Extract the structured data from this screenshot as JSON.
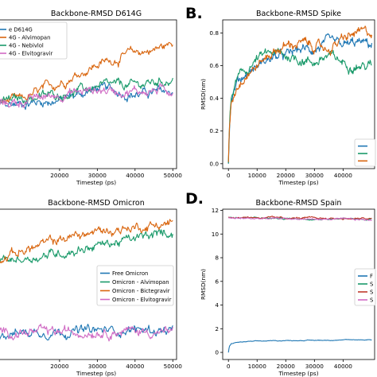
{
  "panel_labels": [
    "B.",
    "D."
  ],
  "colors": {
    "blue": "#1f77b4",
    "orange": "#d9660f",
    "green": "#1a9a6a",
    "pink": "#d06bc4",
    "red": "#c0392b"
  },
  "chart_data": [
    {
      "type": "line",
      "title": "Backbone-RMSD D614G",
      "xlabel": "Timestep (ps)",
      "ylabel": "",
      "xlim": [
        0,
        51000
      ],
      "xticks": [
        20000,
        30000,
        40000,
        50000
      ],
      "ylim": [
        0,
        1
      ],
      "legend_position": "upper-left",
      "series": [
        {
          "name": "e D614G",
          "color": "#1f77b4",
          "x": [
            0,
            10000,
            20000,
            30000,
            40000,
            50000
          ],
          "y": [
            0.41,
            0.44,
            0.46,
            0.54,
            0.5,
            0.52
          ]
        },
        {
          "name": "4G - Alvimopan",
          "color": "#d9660f",
          "x": [
            0,
            10000,
            20000,
            30000,
            40000,
            45000,
            50000
          ],
          "y": [
            0.44,
            0.46,
            0.58,
            0.7,
            0.78,
            0.8,
            0.84
          ]
        },
        {
          "name": "4G - Nebivlol",
          "color": "#1a9a6a",
          "x": [
            0,
            10000,
            20000,
            30000,
            40000,
            50000
          ],
          "y": [
            0.43,
            0.47,
            0.5,
            0.55,
            0.56,
            0.6
          ]
        },
        {
          "name": "4G - Elvitogravir",
          "color": "#d06bc4",
          "x": [
            0,
            10000,
            20000,
            30000,
            40000,
            50000
          ],
          "y": [
            0.42,
            0.45,
            0.5,
            0.53,
            0.52,
            0.53
          ]
        }
      ]
    },
    {
      "type": "line",
      "title": "Backbone-RMSD Spike",
      "xlabel": "Timestep (ps)",
      "ylabel": "RMSD(nm)",
      "xlim": [
        -2000,
        51000
      ],
      "xticks": [
        0,
        10000,
        20000,
        30000,
        40000
      ],
      "ylim": [
        -0.03,
        0.88
      ],
      "yticks": [
        0.0,
        0.2,
        0.4,
        0.6,
        0.8
      ],
      "legend_position": "lower-right",
      "series": [
        {
          "name": "",
          "color": "#1f77b4",
          "x": [
            0,
            300,
            1000,
            3000,
            6000,
            10000,
            15000,
            20000,
            25000,
            30000,
            35000,
            40000,
            45000,
            50000
          ],
          "y": [
            0.0,
            0.2,
            0.4,
            0.5,
            0.55,
            0.6,
            0.65,
            0.66,
            0.7,
            0.7,
            0.74,
            0.72,
            0.74,
            0.73
          ]
        },
        {
          "name": "",
          "color": "#1a9a6a",
          "x": [
            0,
            300,
            1000,
            3000,
            6000,
            10000,
            15000,
            20000,
            25000,
            30000,
            35000,
            40000,
            45000,
            50000
          ],
          "y": [
            0.0,
            0.22,
            0.4,
            0.52,
            0.56,
            0.64,
            0.68,
            0.66,
            0.64,
            0.62,
            0.66,
            0.62,
            0.6,
            0.6
          ]
        },
        {
          "name": "",
          "color": "#d9660f",
          "x": [
            0,
            300,
            1000,
            3000,
            6000,
            10000,
            15000,
            20000,
            25000,
            30000,
            35000,
            40000,
            45000,
            50000
          ],
          "y": [
            0.0,
            0.2,
            0.38,
            0.48,
            0.55,
            0.6,
            0.68,
            0.72,
            0.74,
            0.72,
            0.7,
            0.76,
            0.8,
            0.8
          ]
        }
      ]
    },
    {
      "type": "line",
      "title": "Backbone-RMSD Omicron",
      "xlabel": "Timestep (ps)",
      "ylabel": "",
      "xlim": [
        0,
        51000
      ],
      "xticks": [
        20000,
        30000,
        40000,
        50000
      ],
      "ylim": [
        0,
        1
      ],
      "legend_position": "right",
      "series": [
        {
          "name": "Free Omicron",
          "color": "#1f77b4",
          "x": [
            0,
            10000,
            20000,
            30000,
            40000,
            50000
          ],
          "y": [
            0.18,
            0.18,
            0.19,
            0.19,
            0.2,
            0.19
          ]
        },
        {
          "name": "Omicron - Alvimopan",
          "color": "#1a9a6a",
          "x": [
            0,
            10000,
            20000,
            30000,
            40000,
            50000
          ],
          "y": [
            0.64,
            0.67,
            0.71,
            0.76,
            0.8,
            0.85
          ]
        },
        {
          "name": "Omicron - Bictegravir",
          "color": "#d9660f",
          "x": [
            0,
            10000,
            20000,
            30000,
            40000,
            50000
          ],
          "y": [
            0.66,
            0.72,
            0.8,
            0.85,
            0.88,
            0.91
          ]
        },
        {
          "name": "Omicron - Elvitogravir",
          "color": "#d06bc4",
          "x": [
            0,
            10000,
            20000,
            30000,
            40000,
            50000
          ],
          "y": [
            0.18,
            0.18,
            0.18,
            0.19,
            0.19,
            0.18
          ]
        }
      ]
    },
    {
      "type": "line",
      "title": "Backbone-RMSD Spain",
      "xlabel": "Timestep (ps)",
      "ylabel": "RMSD(nm)",
      "xlim": [
        -2000,
        51000
      ],
      "xticks": [
        0,
        10000,
        20000,
        30000,
        40000
      ],
      "ylim": [
        -0.6,
        12.1
      ],
      "yticks": [
        0,
        2,
        4,
        6,
        8,
        10,
        12
      ],
      "legend_position": "right",
      "series": [
        {
          "name": "F",
          "color": "#1f77b4",
          "x": [
            0,
            300,
            1000,
            3000,
            6000,
            10000,
            20000,
            30000,
            40000,
            50000
          ],
          "y": [
            0.0,
            0.5,
            0.75,
            0.85,
            0.9,
            0.95,
            1.0,
            1.02,
            1.05,
            1.08
          ]
        },
        {
          "name": "S",
          "color": "#1a9a6a",
          "x": [
            0,
            10000,
            20000,
            30000,
            40000,
            50000
          ],
          "y": [
            11.4,
            11.35,
            11.3,
            11.3,
            11.28,
            11.25
          ]
        },
        {
          "name": "S",
          "color": "#c0392b",
          "x": [
            0,
            10000,
            20000,
            30000,
            40000,
            50000
          ],
          "y": [
            11.45,
            11.4,
            11.35,
            11.35,
            11.3,
            11.3
          ]
        },
        {
          "name": "S",
          "color": "#d06bc4",
          "x": [
            0,
            10000,
            20000,
            30000,
            40000,
            50000
          ],
          "y": [
            11.35,
            11.3,
            11.3,
            11.25,
            11.25,
            11.2
          ]
        }
      ]
    }
  ]
}
